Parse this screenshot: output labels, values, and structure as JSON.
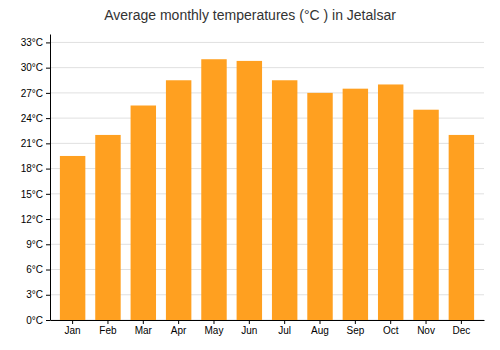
{
  "chart_data": {
    "type": "bar",
    "title": "Average monthly temperatures (°C ) in Jetalsar",
    "categories": [
      "Jan",
      "Feb",
      "Mar",
      "Apr",
      "May",
      "Jun",
      "Jul",
      "Aug",
      "Sep",
      "Oct",
      "Nov",
      "Dec"
    ],
    "values": [
      19.5,
      22.0,
      25.5,
      28.5,
      31.0,
      30.8,
      28.5,
      27.0,
      27.5,
      28.0,
      25.0,
      22.0
    ],
    "color": "#FFA020",
    "ylim": [
      0,
      34
    ],
    "yticks": [
      {
        "value": 0,
        "label": "0°C"
      },
      {
        "value": 3,
        "label": "3°C"
      },
      {
        "value": 6,
        "label": "6°C"
      },
      {
        "value": 9,
        "label": "9°C"
      },
      {
        "value": 12,
        "label": "12°C"
      },
      {
        "value": 15,
        "label": "15°C"
      },
      {
        "value": 18,
        "label": "18°C"
      },
      {
        "value": 21,
        "label": "21°C"
      },
      {
        "value": 24,
        "label": "24°C"
      },
      {
        "value": 27,
        "label": "27°C"
      },
      {
        "value": 30,
        "label": "30°C"
      },
      {
        "value": 33,
        "label": "33°C"
      }
    ],
    "grid": true
  }
}
